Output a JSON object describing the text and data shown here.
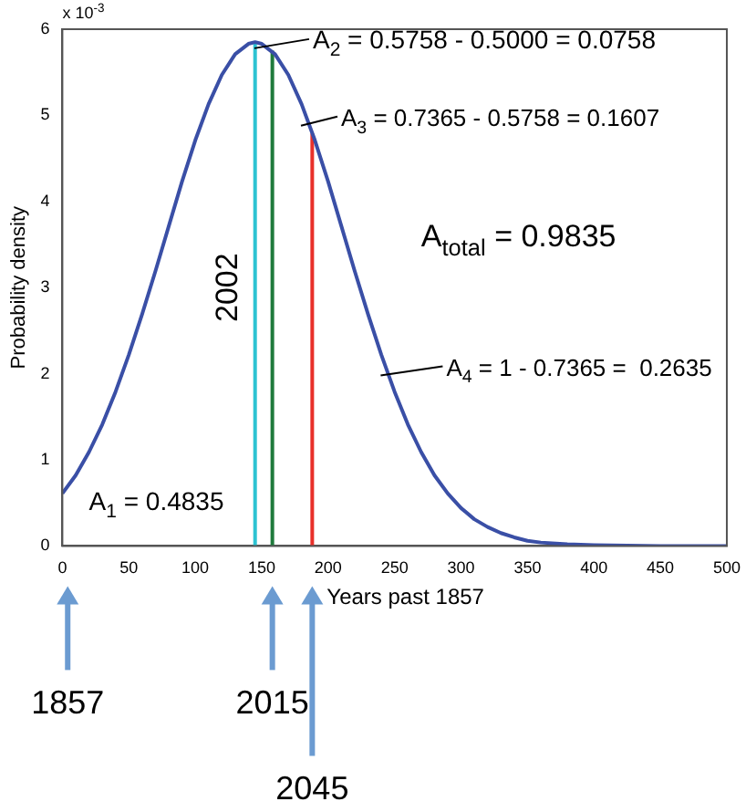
{
  "chart_data": {
    "type": "line",
    "xlabel": "Years past 1857",
    "ylabel": "Probability density",
    "xlim": [
      0,
      500
    ],
    "xticks": [
      0,
      50,
      100,
      150,
      200,
      250,
      300,
      350,
      400,
      450,
      500
    ],
    "ylim": [
      0,
      6
    ],
    "yticks": [
      0,
      1,
      2,
      3,
      4,
      5,
      6
    ],
    "grid": false,
    "legend": false,
    "marker": "none",
    "line_style": "solid",
    "series": [
      {
        "color": "#3a4fa6",
        "x": [
          0,
          10,
          20,
          30,
          40,
          50,
          60,
          70,
          80,
          90,
          100,
          110,
          120,
          130,
          140,
          145,
          150,
          160,
          170,
          180,
          190,
          200,
          210,
          220,
          230,
          240,
          250,
          260,
          270,
          280,
          290,
          300,
          310,
          320,
          330,
          340,
          350,
          360,
          380,
          400,
          450,
          500
        ],
        "values": [
          0.61,
          0.82,
          1.09,
          1.41,
          1.79,
          2.22,
          2.69,
          3.19,
          3.71,
          4.23,
          4.71,
          5.13,
          5.47,
          5.71,
          5.83,
          5.85,
          5.83,
          5.71,
          5.47,
          5.13,
          4.71,
          4.23,
          3.71,
          3.19,
          2.69,
          2.22,
          1.79,
          1.41,
          1.09,
          0.82,
          0.61,
          0.44,
          0.31,
          0.22,
          0.15,
          0.1,
          0.06,
          0.04,
          0.02,
          0.01,
          0,
          0
        ]
      },
      {
        "color": "#2cc3d2",
        "x": [
          145,
          145
        ],
        "values": [
          0,
          5.85
        ]
      },
      {
        "color": "#1f7a3c",
        "x": [
          158,
          158
        ],
        "values": [
          0,
          5.75
        ]
      },
      {
        "color": "#e8302a",
        "x": [
          188,
          188
        ],
        "values": [
          0,
          4.79
        ]
      }
    ],
    "annotations": [
      "x 10$^{-3}$",
      {
        "text": "A$_{2}$ = 0.5758 - 0.5000 = 0.0758",
        "x": 150,
        "y": 5.8
      },
      {
        "text": "A$_{3}$ = 0.7365 - 0.5758 = 0.1607",
        "x": 185,
        "y": 4.9
      },
      "A$_{total}$ = 0.9835",
      {
        "text": "A$_{4}$ = 1 - 0.7365 =  0.2635",
        "x": 245,
        "y": 2
      },
      "A$_{1}$ = 0.4835",
      {
        "text": "2002",
        "x": 145,
        "y": 3
      },
      "1857",
      "2015",
      "2045"
    ]
  }
}
